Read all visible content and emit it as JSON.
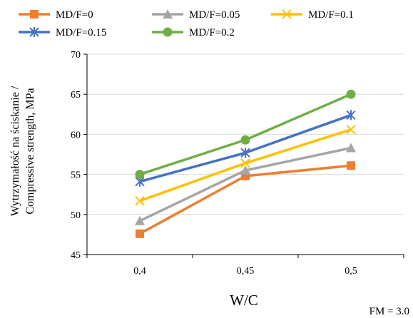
{
  "chart_data": {
    "type": "line",
    "title": "",
    "xlabel": "W/C",
    "ylabel_line1": "Wytrzymałość na ściskanie /",
    "ylabel_line2": "Compressive strength, MPa",
    "categories": [
      "0,4",
      "0,45",
      "0,5"
    ],
    "ylim": [
      45,
      70
    ],
    "yticks": [
      45,
      50,
      55,
      60,
      65,
      70
    ],
    "grid": "horizontal",
    "legend_position": "top",
    "annotation": "FM = 3.0",
    "series": [
      {
        "name": "MD/F=0",
        "color": "#ED7D31",
        "marker": "square",
        "values": [
          47.6,
          54.8,
          56.1
        ]
      },
      {
        "name": "MD/F=0.05",
        "color": "#A5A5A5",
        "marker": "triangle",
        "values": [
          49.2,
          55.5,
          58.3
        ]
      },
      {
        "name": "MD/F=0.1",
        "color": "#FFC000",
        "marker": "x",
        "values": [
          51.7,
          56.4,
          60.6
        ]
      },
      {
        "name": "MD/F=0.15",
        "color": "#4472C4",
        "marker": "star",
        "values": [
          54.1,
          57.7,
          62.4
        ]
      },
      {
        "name": "MD/F=0.2",
        "color": "#70AD47",
        "marker": "circle",
        "values": [
          55.0,
          59.3,
          65.0
        ]
      }
    ]
  }
}
